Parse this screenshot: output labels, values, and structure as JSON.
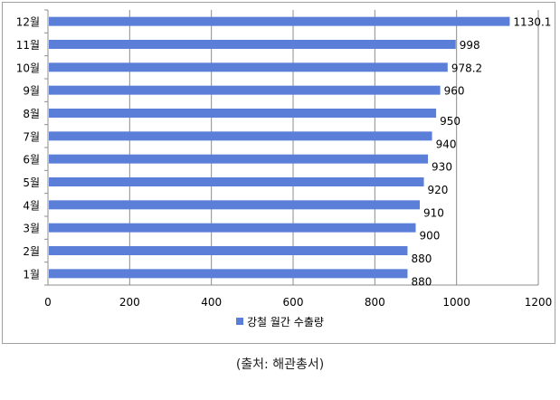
{
  "chart_data": {
    "type": "bar",
    "orientation": "horizontal",
    "categories": [
      "1월",
      "2월",
      "3월",
      "4월",
      "5월",
      "6월",
      "7월",
      "8월",
      "9월",
      "10월",
      "11월",
      "12월"
    ],
    "series": [
      {
        "name": "강철 월간 수출량",
        "values": [
          880,
          880,
          900,
          910,
          920,
          930,
          940,
          950,
          960,
          978.2,
          998,
          1130.1
        ]
      }
    ],
    "data_labels": [
      "880",
      "880",
      "900",
      "910",
      "920",
      "930",
      "940",
      "950",
      "960",
      "978.2",
      "998",
      "1130.1"
    ],
    "xlim": [
      0,
      1200
    ],
    "x_ticks": [
      "0",
      "200",
      "400",
      "600",
      "800",
      "1000",
      "1200"
    ],
    "grid": "vertical-major",
    "legend": "bottom",
    "bar_color": "#5b7fd8"
  },
  "caption": "(출처: 해관총서)"
}
